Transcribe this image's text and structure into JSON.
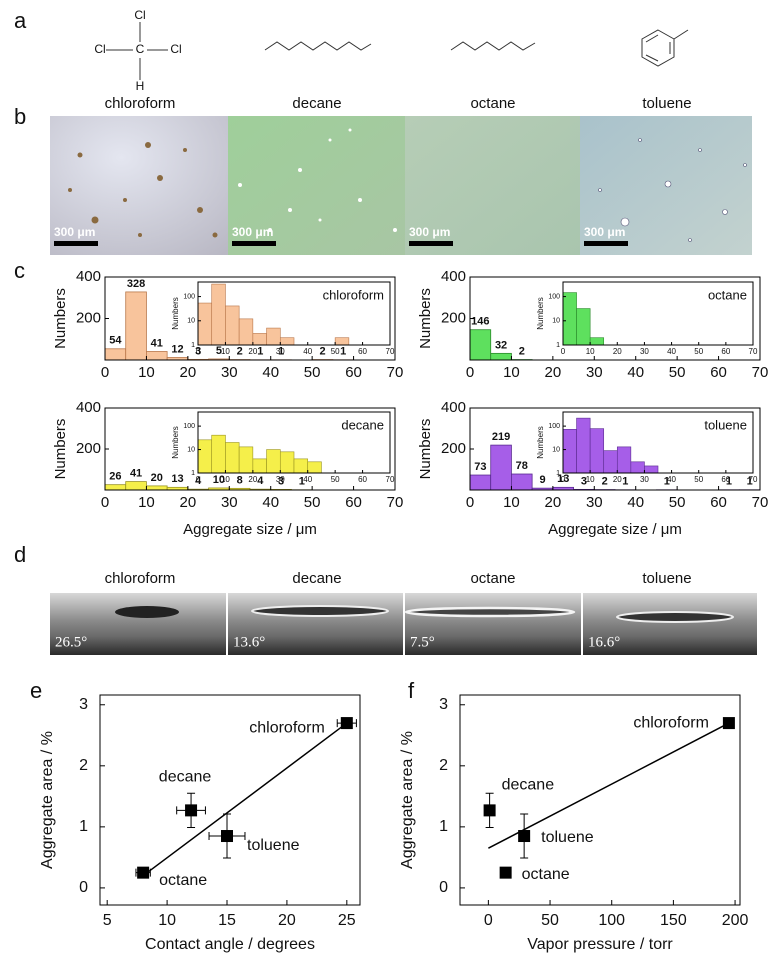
{
  "panel_labels": [
    "a",
    "b",
    "c",
    "d",
    "e",
    "f"
  ],
  "structures": {
    "chloroform_atoms": [
      "Cl",
      "Cl",
      "C",
      "Cl",
      "H"
    ]
  },
  "solvents": [
    "chloroform",
    "decane",
    "octane",
    "toluene"
  ],
  "micrographs": {
    "scale_bar": "300 μm"
  },
  "contact_angle_images": {
    "labels": [
      "26.5°",
      "13.6°",
      "7.5°",
      "16.6°"
    ]
  },
  "chart_data": [
    {
      "type": "histogram",
      "bins": [
        0,
        5,
        10,
        15,
        20,
        25,
        30,
        35,
        40,
        45,
        50,
        55,
        60
      ],
      "values": [
        54,
        328,
        41,
        12,
        3,
        5,
        2,
        1,
        1,
        0,
        2,
        1
      ],
      "color": "#f8c49c",
      "edge": "#b9774a",
      "xlim": [
        0,
        70
      ],
      "xticks": [
        0,
        10,
        20,
        30,
        40,
        50,
        60,
        70
      ],
      "ylim": [
        0,
        400
      ],
      "yticks": [
        200,
        400
      ],
      "ylabel": "Numbers",
      "inset": {
        "title": "chloroform",
        "log_y": true,
        "ylim": [
          1,
          400
        ],
        "yticks": [
          1,
          10,
          100
        ],
        "xlim": [
          0,
          70
        ],
        "xticks": [
          0,
          10,
          20,
          30,
          40,
          50,
          60,
          70
        ],
        "ylabel": "Numbers"
      }
    },
    {
      "type": "histogram",
      "bins": [
        0,
        5,
        10,
        15
      ],
      "values": [
        146,
        32,
        2
      ],
      "color": "#5ee05e",
      "edge": "#2a8a2a",
      "xlim": [
        0,
        70
      ],
      "xticks": [
        0,
        10,
        20,
        30,
        40,
        50,
        60,
        70
      ],
      "ylim": [
        0,
        400
      ],
      "yticks": [
        200,
        400
      ],
      "ylabel": "Numbers",
      "inset": {
        "title": "octane",
        "log_y": true,
        "ylim": [
          1,
          400
        ],
        "yticks": [
          1,
          10,
          100
        ],
        "xlim": [
          0,
          70
        ],
        "xticks": [
          0,
          10,
          20,
          30,
          40,
          50,
          60,
          70
        ],
        "ylabel": "Numbers"
      }
    },
    {
      "type": "histogram",
      "bins": [
        0,
        5,
        10,
        15,
        20,
        25,
        30,
        35,
        40,
        45,
        50
      ],
      "values": [
        26,
        41,
        20,
        13,
        4,
        10,
        8,
        4,
        3,
        1
      ],
      "color": "#f5ef4a",
      "edge": "#9a9420",
      "xlim": [
        0,
        70
      ],
      "xticks": [
        0,
        10,
        20,
        30,
        40,
        50,
        60,
        70
      ],
      "ylim": [
        0,
        400
      ],
      "yticks": [
        200,
        400
      ],
      "ylabel": "Numbers",
      "xlabel": "Aggregate size / μm",
      "inset": {
        "title": "decane",
        "log_y": true,
        "ylim": [
          1,
          400
        ],
        "yticks": [
          1,
          10,
          100
        ],
        "xlim": [
          0,
          70
        ],
        "xticks": [
          0,
          10,
          20,
          30,
          40,
          50,
          60,
          70
        ],
        "ylabel": "Numbers"
      }
    },
    {
      "type": "histogram",
      "bins": [
        0,
        5,
        10,
        15,
        20,
        25,
        30,
        35,
        40,
        45,
        50,
        55,
        60,
        65,
        70
      ],
      "values": [
        73,
        219,
        78,
        9,
        13,
        3,
        2,
        1,
        0,
        1,
        0,
        0,
        1,
        1
      ],
      "color": "#a65ee8",
      "edge": "#5a2a90",
      "xlim": [
        0,
        70
      ],
      "xticks": [
        0,
        10,
        20,
        30,
        40,
        50,
        60,
        70
      ],
      "ylim": [
        0,
        400
      ],
      "yticks": [
        200,
        400
      ],
      "ylabel": "Numbers",
      "xlabel": "Aggregate size / μm",
      "inset": {
        "title": "toluene",
        "log_y": true,
        "ylim": [
          1,
          400
        ],
        "yticks": [
          1,
          10,
          100
        ],
        "xlim": [
          0,
          70
        ],
        "xticks": [
          0,
          10,
          20,
          30,
          40,
          50,
          60,
          70
        ],
        "ylabel": "Numbers"
      }
    },
    {
      "type": "scatter",
      "categories": [
        "octane",
        "decane",
        "toluene",
        "chloroform"
      ],
      "x": [
        8,
        12,
        15,
        25
      ],
      "y": [
        0.25,
        1.27,
        0.85,
        2.7
      ],
      "xerr": [
        0.6,
        1.2,
        1.5,
        0.8
      ],
      "yerr": [
        0.07,
        0.28,
        0.36,
        0.08
      ],
      "color": "#000000",
      "fit": {
        "x": [
          8,
          25
        ],
        "y": [
          0.2,
          2.7
        ]
      },
      "xlim": [
        4.4,
        26.1
      ],
      "xticks": [
        5,
        10,
        15,
        20,
        25
      ],
      "ylim": [
        -0.28,
        3.16
      ],
      "yticks": [
        0,
        1,
        2,
        3
      ],
      "xlabel": "Contact angle / degrees",
      "ylabel": "Aggregate area / %"
    },
    {
      "type": "scatter",
      "categories": [
        "octane",
        "decane",
        "toluene",
        "chloroform"
      ],
      "x": [
        14,
        1,
        29,
        195
      ],
      "y": [
        0.25,
        1.27,
        0.85,
        2.7
      ],
      "yerr": [
        0.07,
        0.28,
        0.36,
        0.08
      ],
      "color": "#000000",
      "fit": {
        "x": [
          0,
          195
        ],
        "y": [
          0.65,
          2.7
        ]
      },
      "xlim": [
        -23,
        204
      ],
      "xticks": [
        0,
        50,
        100,
        150,
        200
      ],
      "ylim": [
        -0.28,
        3.16
      ],
      "yticks": [
        0,
        1,
        2,
        3
      ],
      "xlabel": "Vapor pressure / torr",
      "ylabel": "Aggregate area / %"
    }
  ]
}
